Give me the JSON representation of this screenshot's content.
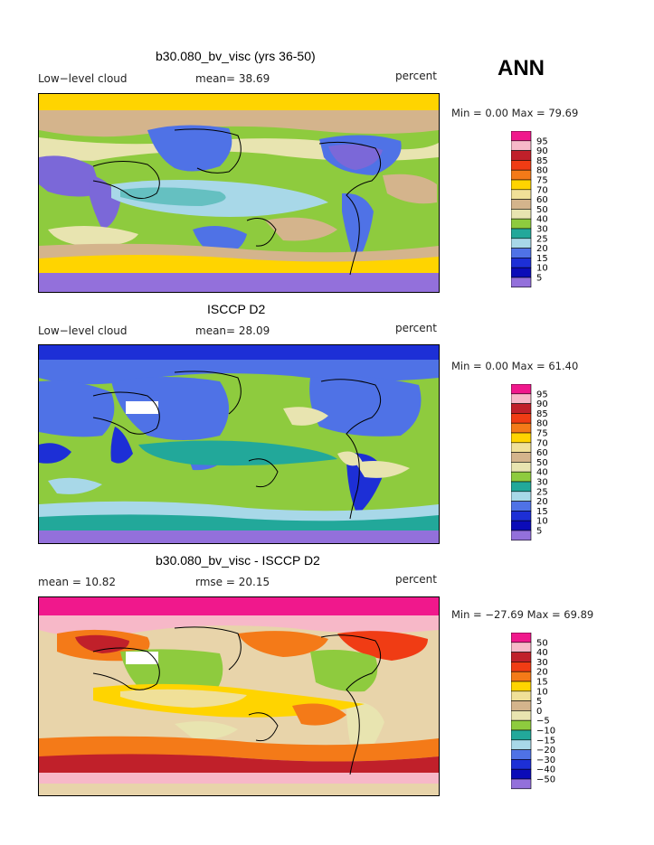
{
  "season": "ANN",
  "panels": [
    {
      "title": "b30.080_bv_visc (yrs 36-50)",
      "left_label": "Low−level cloud",
      "mid_label": "mean=  38.69",
      "right_label": "percent",
      "minmax": "Min =   0.00 Max =  79.69",
      "colorbar_labels": [
        "95",
        "90",
        "85",
        "80",
        "75",
        "70",
        "60",
        "50",
        "40",
        "30",
        "25",
        "20",
        "15",
        "10",
        "5"
      ],
      "colors": {
        "base": "#8ecb3e",
        "low": "#7b68d8",
        "mid": "#a8d8e8",
        "high": "#d4b48c",
        "peak": "#ffd400"
      }
    },
    {
      "title": "ISCCP D2",
      "left_label": "Low−level cloud",
      "mid_label": "mean=  28.09",
      "right_label": "percent",
      "minmax": "Min =   0.00 Max =  61.40",
      "colorbar_labels": [
        "95",
        "90",
        "85",
        "80",
        "75",
        "70",
        "60",
        "50",
        "40",
        "30",
        "25",
        "20",
        "15",
        "10",
        "5"
      ],
      "colors": {
        "base": "#8ecb3e",
        "low": "#1d2fd6",
        "mid": "#4f72e6",
        "high": "#e8e4b0",
        "peak": "#d4b48c"
      }
    },
    {
      "title": "b30.080_bv_visc - ISCCP D2",
      "left_label": "mean =   10.82",
      "mid_label": "rmse =  20.15",
      "right_label": "percent",
      "minmax": "Min = −27.69 Max =  69.89",
      "colorbar_labels": [
        "50",
        "40",
        "30",
        "20",
        "15",
        "10",
        "5",
        "0",
        "−5",
        "−10",
        "−15",
        "−20",
        "−30",
        "−40",
        "−50"
      ],
      "colors": {
        "base": "#e8d4aa",
        "low": "#8ecb3e",
        "mid": "#ffd400",
        "high": "#f47a18",
        "peak": "#f0188c"
      }
    }
  ],
  "colorbar_colors": [
    "#f0188c",
    "#f7b8c8",
    "#c0202a",
    "#f03c14",
    "#f47a18",
    "#ffd400",
    "#f0e098",
    "#d4b48c",
    "#e8e4b0",
    "#8ecb3e",
    "#22a89a",
    "#a8d8e8",
    "#4f72e6",
    "#1d2fd6",
    "#0b0bb8",
    "#9370db"
  ]
}
